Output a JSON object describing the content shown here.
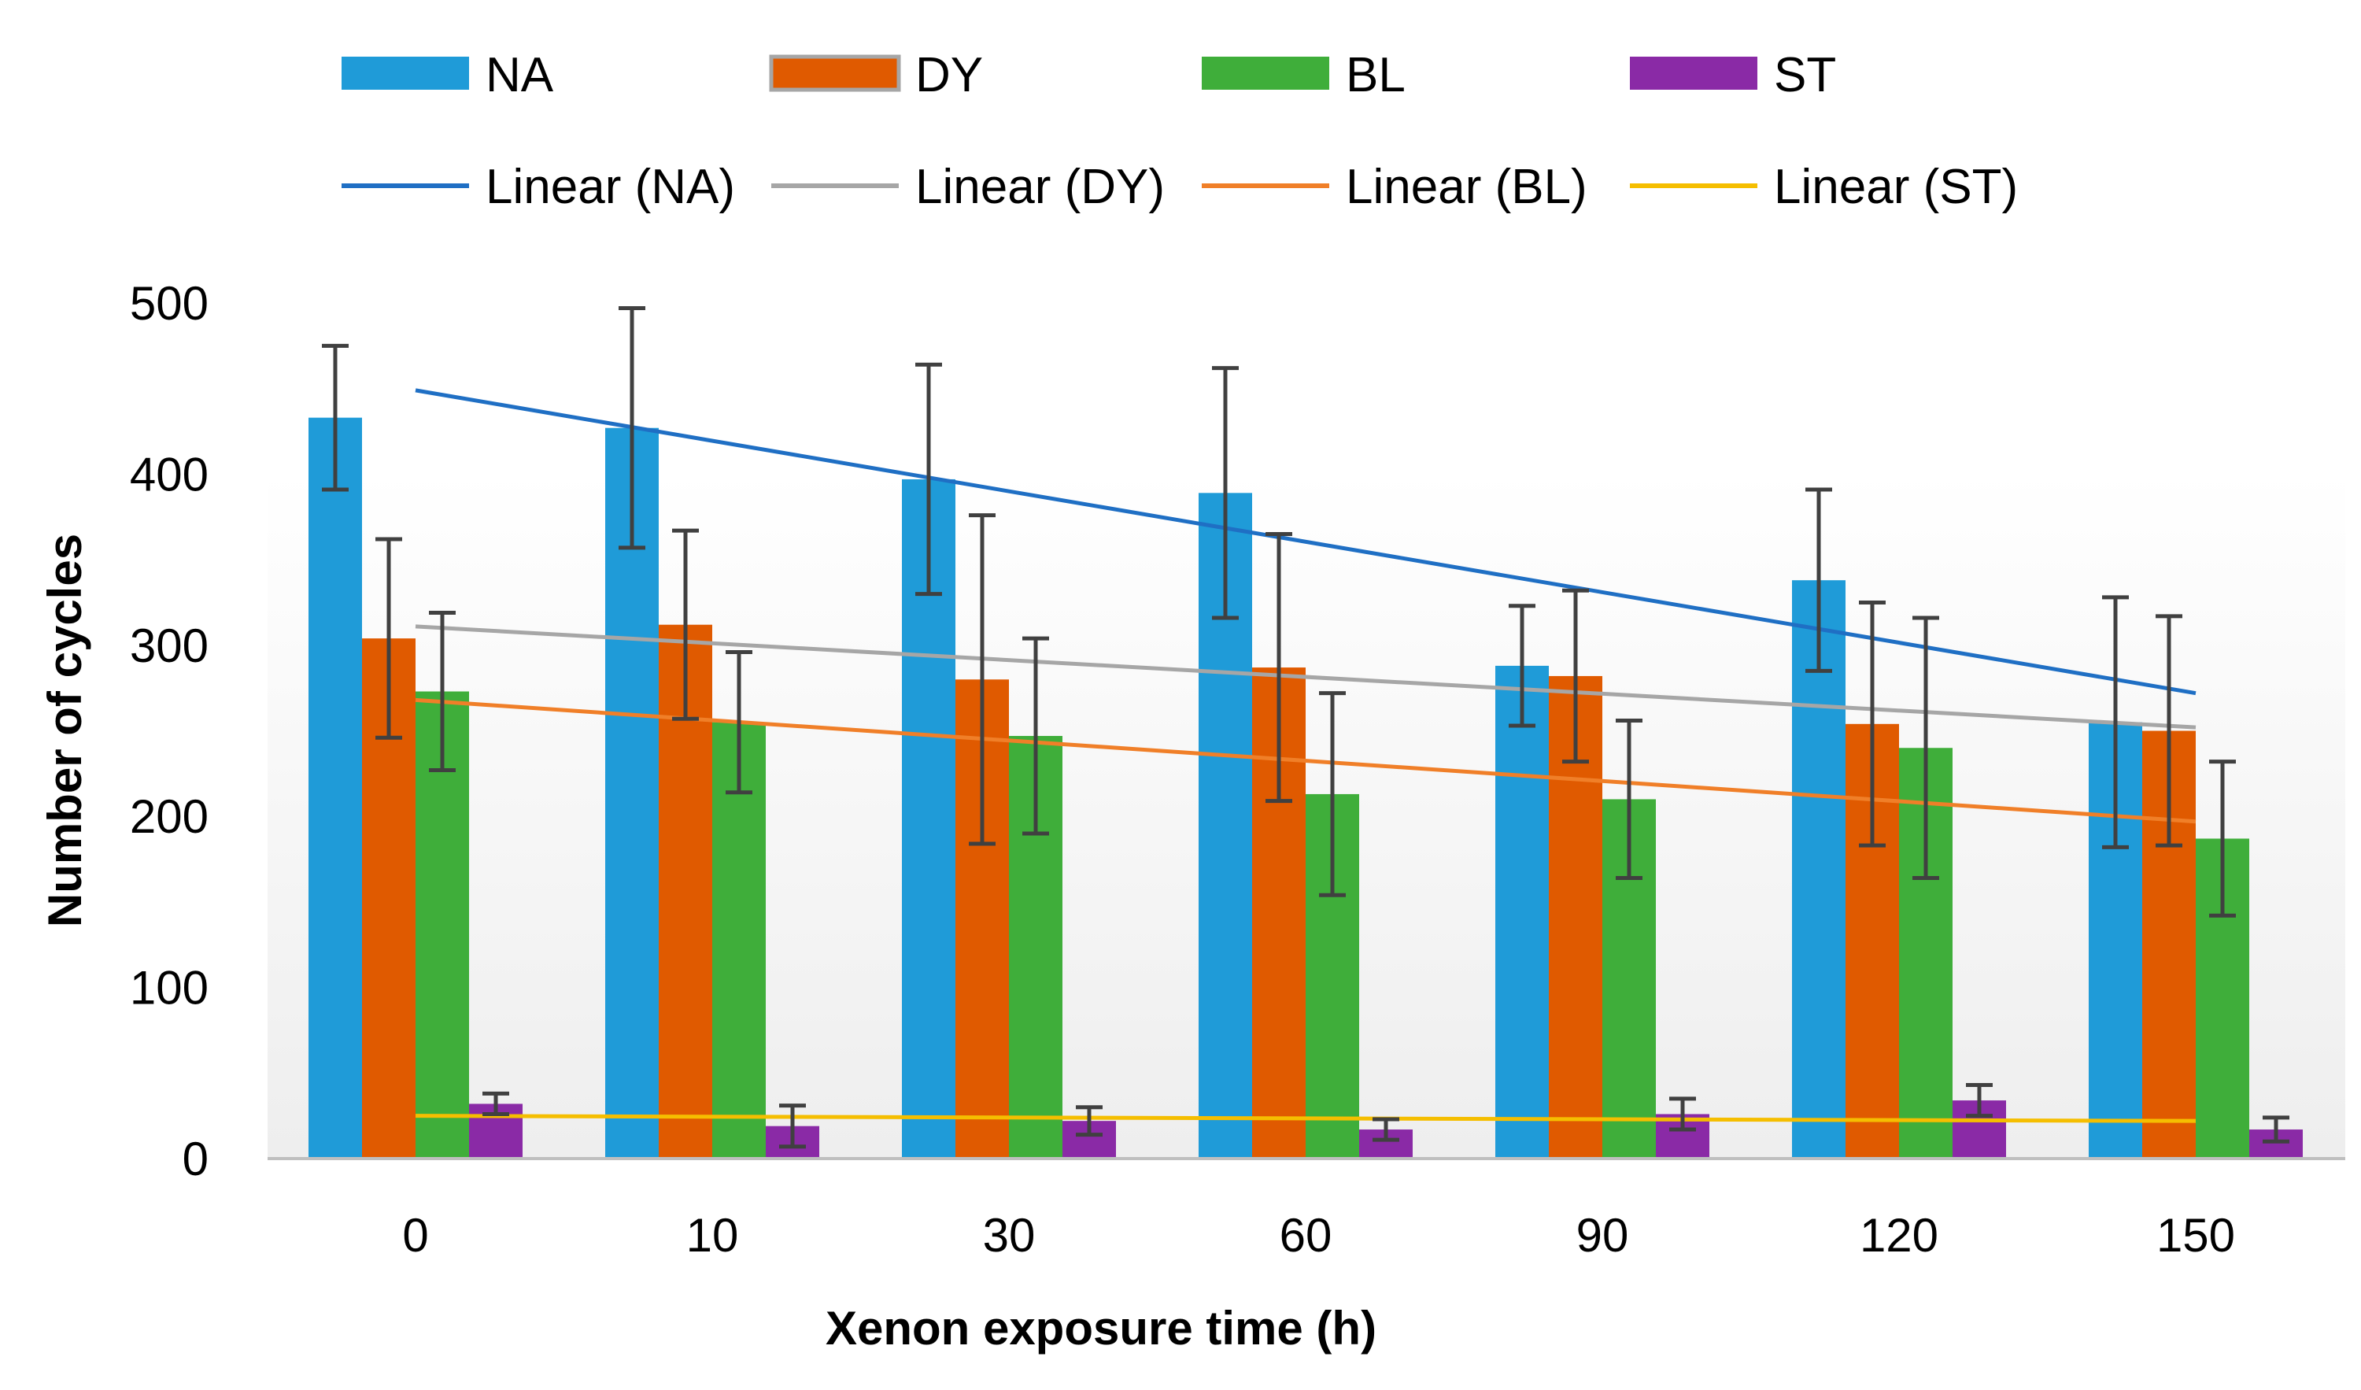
{
  "chart_data": {
    "type": "bar",
    "title": "",
    "xlabel": "Xenon exposure time (h)",
    "ylabel": "Number of cycles",
    "ylim": [
      0,
      500
    ],
    "yticks": [
      0,
      100,
      200,
      300,
      400,
      500
    ],
    "categories": [
      "0",
      "10",
      "30",
      "60",
      "90",
      "120",
      "150"
    ],
    "grid": false,
    "legend_position": "top",
    "series": [
      {
        "name": "NA",
        "color": "#1f9bd8",
        "values": [
          433,
          427,
          397,
          389,
          288,
          338,
          255
        ],
        "error": [
          42,
          70,
          67,
          73,
          35,
          53,
          73
        ]
      },
      {
        "name": "DY",
        "color": "#e05a00",
        "values": [
          304,
          312,
          280,
          287,
          282,
          254,
          250
        ],
        "error": [
          58,
          55,
          96,
          78,
          50,
          71,
          67
        ]
      },
      {
        "name": "BL",
        "color": "#3fae3a",
        "values": [
          273,
          255,
          247,
          213,
          210,
          240,
          187
        ],
        "error": [
          46,
          41,
          57,
          59,
          46,
          76,
          45
        ]
      },
      {
        "name": "ST",
        "color": "#8a2aa6",
        "values": [
          32,
          19,
          22,
          17,
          26,
          34,
          17
        ],
        "error": [
          6,
          12,
          8,
          6,
          9,
          9,
          7
        ]
      }
    ],
    "trendlines": [
      {
        "name": "Linear (NA)",
        "color": "#1f6fc4",
        "start": 449,
        "end": 272
      },
      {
        "name": "Linear (DY)",
        "color": "#a6a6a6",
        "start": 311,
        "end": 252
      },
      {
        "name": "Linear (BL)",
        "color": "#f07f28",
        "start": 268,
        "end": 197
      },
      {
        "name": "Linear (ST)",
        "color": "#f5be00",
        "start": 25,
        "end": 22
      }
    ]
  }
}
